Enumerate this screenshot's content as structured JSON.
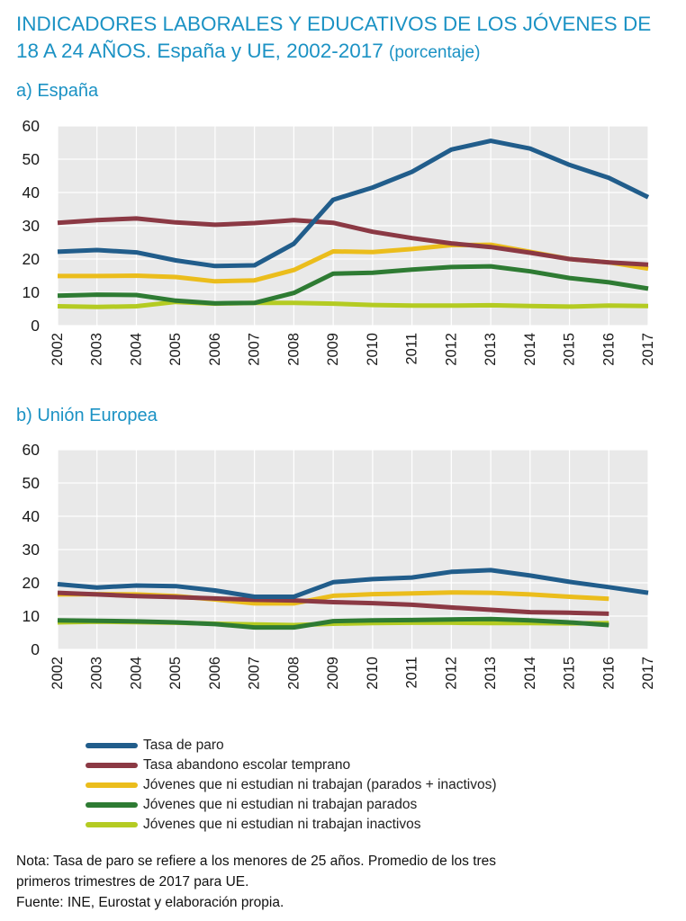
{
  "title": {
    "main": "INDICADORES LABORALES Y EDUCATIVOS DE LOS JÓVENES DE 18 A 24 AÑOS. España y UE, 2002-2017",
    "unit": "(porcentaje)"
  },
  "legend": [
    {
      "label": "Tasa de paro",
      "color": "#215d8b"
    },
    {
      "label": "Tasa abandono escolar temprano",
      "color": "#8b3944"
    },
    {
      "label": "Jóvenes que ni estudian ni trabajan (parados + inactivos)",
      "color": "#ebbd1c"
    },
    {
      "label": "Jóvenes que ni estudian ni trabajan parados",
      "color": "#2e7b33"
    },
    {
      "label": "Jóvenes que ni estudian ni trabajan inactivos",
      "color": "#b4cb22"
    }
  ],
  "note": {
    "line1": "Nota: Tasa de paro se refiere a los menores de 25 años. Promedio de los tres",
    "line2": "primeros trimestres de 2017 para UE.",
    "line3": "Fuente: INE, Eurostat  y elaboración propia."
  },
  "chart_data": [
    {
      "type": "line",
      "title": "a) España",
      "ylim": [
        0,
        60
      ],
      "yticks": [
        0,
        10,
        20,
        30,
        40,
        50,
        60
      ],
      "grid": true,
      "categories": [
        "2002",
        "2003",
        "2004",
        "2005",
        "2006",
        "2007",
        "2008",
        "2009",
        "2010",
        "2011",
        "2012",
        "2013",
        "2014",
        "2015",
        "2016",
        "2017"
      ],
      "series": [
        {
          "name": "Tasa de paro",
          "color": "#215d8b",
          "values": [
            22.2,
            22.7,
            22.0,
            19.6,
            17.9,
            18.1,
            24.6,
            37.8,
            41.5,
            46.2,
            52.9,
            55.5,
            53.2,
            48.3,
            44.4,
            38.6
          ]
        },
        {
          "name": "Tasa abandono escolar temprano",
          "color": "#8b3944",
          "values": [
            30.9,
            31.7,
            32.2,
            31.0,
            30.3,
            30.8,
            31.7,
            30.9,
            28.2,
            26.3,
            24.7,
            23.6,
            21.9,
            20.0,
            19.0,
            18.3
          ]
        },
        {
          "name": "Jóvenes que ni estudian ni trabajan (parados + inactivos)",
          "color": "#ebbd1c",
          "values": [
            14.9,
            14.9,
            15.0,
            14.6,
            13.3,
            13.6,
            16.7,
            22.3,
            22.1,
            23.0,
            24.2,
            24.3,
            22.2,
            20.0,
            19.0,
            17.1
          ]
        },
        {
          "name": "Jóvenes que ni estudian ni trabajan parados",
          "color": "#2e7b33",
          "values": [
            9.0,
            9.3,
            9.2,
            7.5,
            6.7,
            6.8,
            9.8,
            15.6,
            15.9,
            16.8,
            17.6,
            17.8,
            16.3,
            14.3,
            13.0,
            11.1
          ]
        },
        {
          "name": "Jóvenes que ni estudian ni trabajan inactivos",
          "color": "#b4cb22",
          "values": [
            5.8,
            5.6,
            5.8,
            7.1,
            6.6,
            6.8,
            6.8,
            6.6,
            6.2,
            6.0,
            6.0,
            6.1,
            5.9,
            5.7,
            6.0,
            5.9
          ]
        }
      ]
    },
    {
      "type": "line",
      "title": "b) Unión Europea",
      "ylim": [
        0,
        60
      ],
      "yticks": [
        0,
        10,
        20,
        30,
        40,
        50,
        60
      ],
      "grid": true,
      "categories": [
        "2002",
        "2003",
        "2004",
        "2005",
        "2006",
        "2007",
        "2008",
        "2009",
        "2010",
        "2011",
        "2012",
        "2013",
        "2014",
        "2015",
        "2016",
        "2017"
      ],
      "series": [
        {
          "name": "Tasa de paro",
          "color": "#215d8b",
          "values": [
            19.6,
            18.6,
            19.2,
            19.0,
            17.7,
            15.8,
            15.8,
            20.2,
            21.1,
            21.6,
            23.3,
            23.8,
            22.2,
            20.3,
            18.7,
            17.0
          ]
        },
        {
          "name": "Tasa abandono escolar temprano",
          "color": "#8b3944",
          "values": [
            17.0,
            16.5,
            16.0,
            15.7,
            15.3,
            14.9,
            14.7,
            14.2,
            13.9,
            13.4,
            12.6,
            11.9,
            11.2,
            11.0,
            10.7,
            null
          ]
        },
        {
          "name": "Jóvenes que ni estudian ni trabajan (parados + inactivos)",
          "color": "#ebbd1c",
          "values": [
            16.5,
            16.6,
            16.5,
            16.0,
            15.0,
            13.8,
            13.8,
            16.1,
            16.6,
            16.8,
            17.1,
            17.0,
            16.5,
            15.8,
            15.2,
            null
          ]
        },
        {
          "name": "Jóvenes que ni estudian ni trabajan parados",
          "color": "#2e7b33",
          "values": [
            8.7,
            8.6,
            8.4,
            8.1,
            7.6,
            6.6,
            6.6,
            8.5,
            8.7,
            8.8,
            9.0,
            9.1,
            8.7,
            8.1,
            7.3,
            null
          ]
        },
        {
          "name": "Jóvenes que ni estudian ni trabajan inactivos",
          "color": "#b4cb22",
          "values": [
            8.1,
            8.3,
            8.2,
            8.0,
            7.7,
            7.5,
            7.3,
            7.7,
            7.9,
            8.0,
            8.0,
            7.9,
            7.9,
            7.8,
            7.9,
            null
          ]
        }
      ]
    }
  ]
}
